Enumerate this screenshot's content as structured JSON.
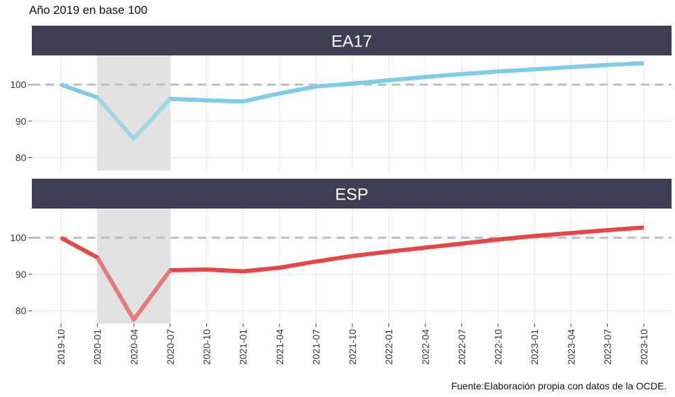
{
  "subtitle": "Año 2019 en base 100",
  "caption": "Fuente:Elaboración propia con datos de la OCDE.",
  "colors": {
    "strip": "#3e3e54",
    "shade": "#e2e2e2",
    "grid": "#e8e8e8",
    "reference": "#bdbdbd"
  },
  "chart_data": {
    "type": "line",
    "x": [
      "2019-10",
      "2020-01",
      "2020-04",
      "2020-07",
      "2020-10",
      "2021-01",
      "2021-04",
      "2021-07",
      "2021-10",
      "2022-01",
      "2022-04",
      "2022-07",
      "2022-10",
      "2023-01",
      "2023-04",
      "2023-07",
      "2023-10"
    ],
    "y_ticks": [
      80,
      90,
      100
    ],
    "ylim": [
      76.5,
      108
    ],
    "reference_line": 100,
    "shaded_range": [
      "2020-01",
      "2020-07"
    ],
    "grid": true,
    "panels": [
      {
        "strip": "EA17",
        "color": "#7ecce5",
        "values": [
          100,
          96.5,
          85.2,
          96.1,
          95.7,
          95.4,
          97.6,
          99.5,
          100.3,
          101.2,
          102.1,
          102.9,
          103.6,
          104.2,
          104.8,
          105.4,
          105.9
        ]
      },
      {
        "strip": "ESP",
        "color": "#e54646",
        "values": [
          100,
          94.6,
          77.6,
          91.1,
          91.3,
          90.8,
          91.8,
          93.5,
          95.0,
          96.2,
          97.3,
          98.4,
          99.5,
          100.5,
          101.3,
          102.1,
          102.8
        ]
      }
    ]
  }
}
